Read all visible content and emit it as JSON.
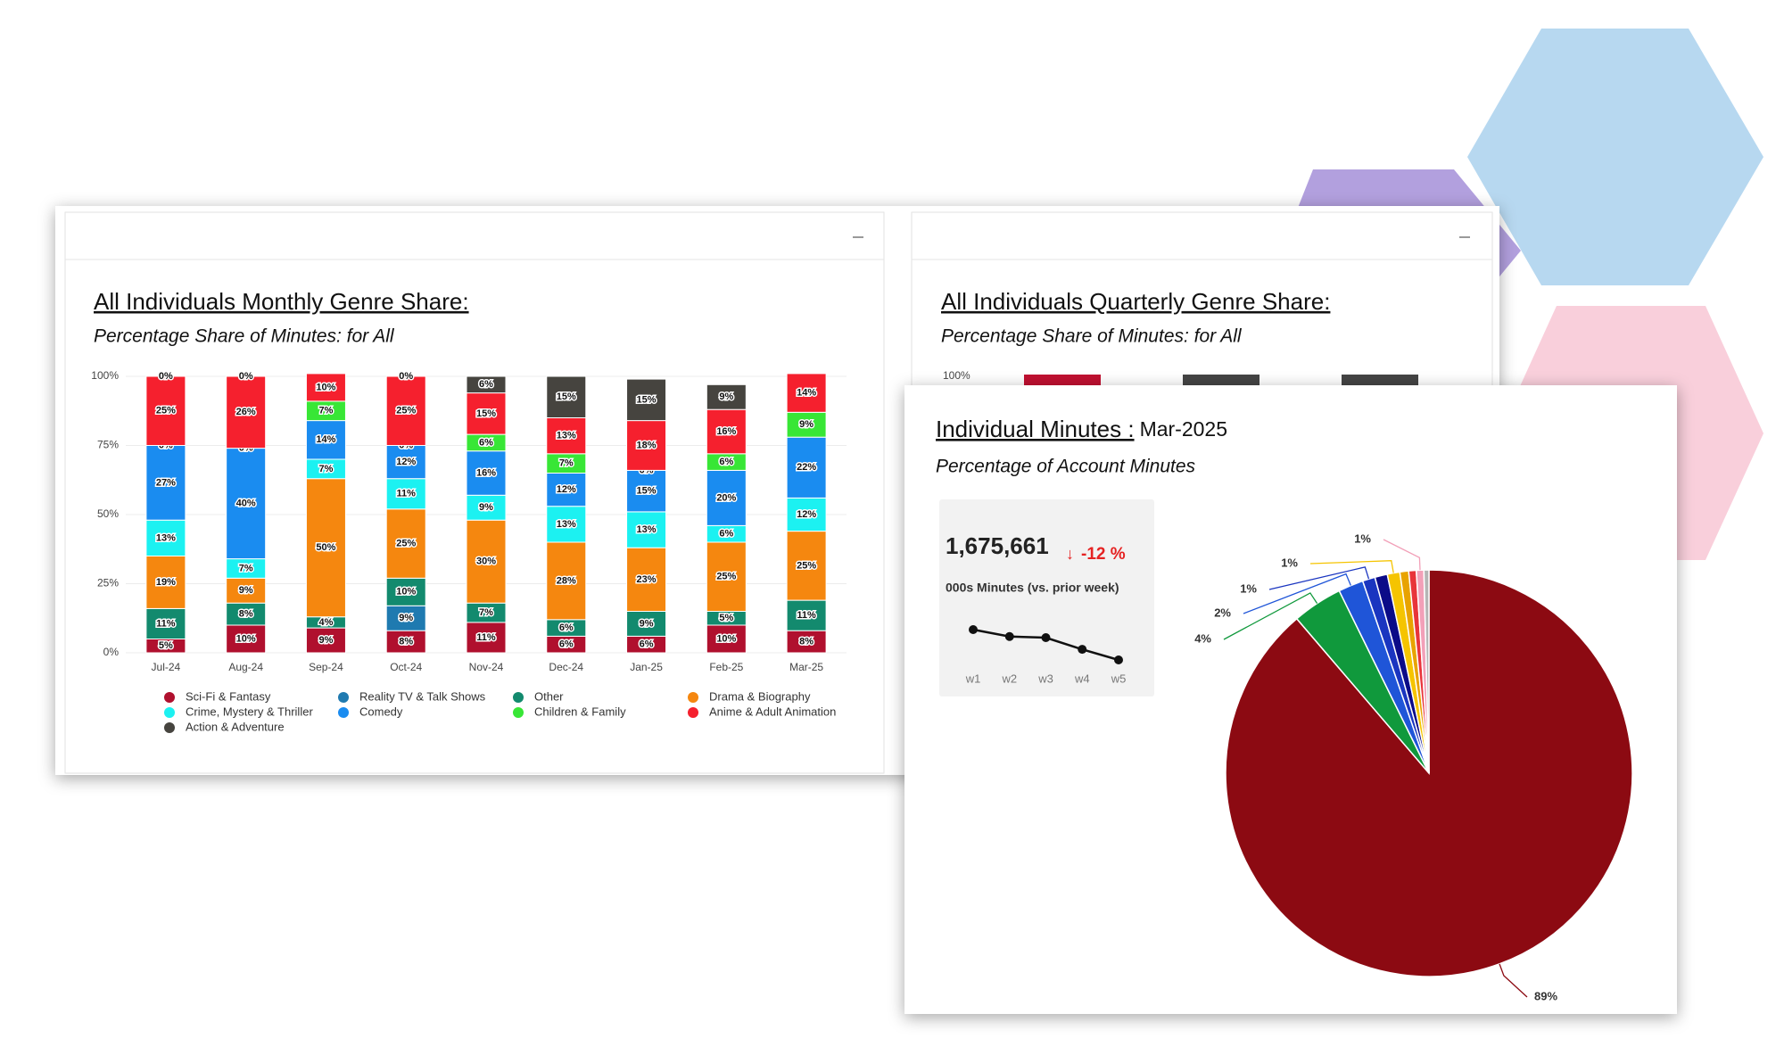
{
  "chart_data": [
    {
      "type": "bar",
      "stacked": true,
      "title": "All Individuals Monthly Genre Share:",
      "subtitle": "Percentage Share of Minutes: for All",
      "categories": [
        "Jul-24",
        "Aug-24",
        "Sep-24",
        "Oct-24",
        "Nov-24",
        "Dec-24",
        "Jan-25",
        "Feb-25",
        "Mar-25"
      ],
      "series": [
        {
          "name": "Sci-Fi & Fantasy",
          "color": "#b0102e",
          "values": [
            5,
            10,
            9,
            8,
            11,
            6,
            6,
            10,
            8
          ],
          "value_labels": [
            "5%",
            "10%",
            "9%",
            "8%",
            "11%",
            "6%",
            "6%",
            "10%",
            "8%"
          ]
        },
        {
          "name": "Reality TV & Talk Shows",
          "color": "#1f7ab0",
          "values": [
            null,
            null,
            null,
            9,
            null,
            null,
            null,
            null,
            null
          ],
          "value_labels": [
            null,
            null,
            null,
            "9%",
            null,
            null,
            null,
            null,
            null
          ]
        },
        {
          "name": "Other",
          "color": "#138a6e",
          "values": [
            11,
            8,
            4,
            10,
            7,
            6,
            9,
            5,
            11
          ],
          "value_labels": [
            "11%",
            "8%",
            "4%",
            "10%",
            "7%",
            "6%",
            "9%",
            "5%",
            "11%"
          ]
        },
        {
          "name": "Drama & Biography",
          "color": "#f5870f",
          "values": [
            19,
            9,
            50,
            25,
            30,
            28,
            23,
            25,
            25
          ],
          "value_labels": [
            "19%",
            "9%",
            "50%",
            "25%",
            "30%",
            "28%",
            "23%",
            "25%",
            "25%"
          ]
        },
        {
          "name": "Crime, Mystery & Thriller",
          "color": "#1cf1f1",
          "values": [
            13,
            7,
            7,
            11,
            9,
            13,
            13,
            6,
            12
          ],
          "value_labels": [
            "13%",
            "7%",
            "7%",
            "11%",
            "9%",
            "13%",
            "13%",
            "6%",
            "12%"
          ]
        },
        {
          "name": "Comedy",
          "color": "#1a8cf0",
          "values": [
            27,
            40,
            14,
            12,
            16,
            12,
            15,
            20,
            22
          ],
          "value_labels": [
            "27%",
            "40%",
            "14%",
            "12%",
            "16%",
            "12%",
            "15%",
            "20%",
            "22%"
          ]
        },
        {
          "name": "Children & Family",
          "color": "#38e636",
          "values": [
            0,
            0,
            7,
            0,
            6,
            7,
            0,
            6,
            9
          ],
          "value_labels": [
            "0%",
            "0%",
            "7%",
            "0%",
            "6%",
            "7%",
            "0%",
            "6%",
            "9%"
          ]
        },
        {
          "name": "Anime & Adult Animation",
          "color": "#f5202e",
          "values": [
            25,
            26,
            10,
            25,
            15,
            13,
            18,
            16,
            14
          ],
          "value_labels": [
            "25%",
            "26%",
            "10%",
            "25%",
            "15%",
            "13%",
            "18%",
            "16%",
            "14%"
          ]
        },
        {
          "name": "Action & Adventure",
          "color": "#46443f",
          "values": [
            0,
            0,
            null,
            0,
            6,
            15,
            15,
            9,
            null
          ],
          "value_labels": [
            "0%",
            "0%",
            null,
            "0%",
            "6%",
            "15%",
            "15%",
            "9%",
            null
          ]
        }
      ],
      "ylim": [
        0,
        100
      ],
      "yticks": [
        {
          "value": 0,
          "label": "0%"
        },
        {
          "value": 25,
          "label": "25%"
        },
        {
          "value": 50,
          "label": "50%"
        },
        {
          "value": 75,
          "label": "75%"
        },
        {
          "value": 100,
          "label": "100%"
        }
      ],
      "grid": true,
      "legend": "bottom"
    },
    {
      "type": "pie",
      "title": "Individual Minutes :",
      "period": "Mar-2025",
      "subtitle": "Percentage of Account Minutes",
      "values": [
        89,
        4,
        2,
        1,
        1,
        1,
        0.7,
        0.6,
        0.6,
        0.4
      ],
      "value_labels": [
        "89%",
        "4%",
        "2%",
        "1%",
        null,
        "1%",
        null,
        null,
        "1%",
        null
      ],
      "colors": [
        "#8c0a12",
        "#10993c",
        "#1f55d8",
        "#1a35c0",
        "#0b0b88",
        "#f5c400",
        "#e8a300",
        "#e8343a",
        "#f2a0b8",
        "#b5b5b5"
      ]
    }
  ],
  "quarterly_panel": {
    "title": "All Individuals Quarterly Genre Share:",
    "subtitle": "Percentage Share of Minutes: for All",
    "ytick": "100%"
  },
  "kpi": {
    "value": "1,675,661",
    "change": "-12 %",
    "caption": "000s Minutes (vs. prior week)",
    "trend": {
      "type": "line",
      "categories": [
        "w1",
        "w2",
        "w3",
        "w4",
        "w5"
      ],
      "values": [
        2340,
        2190,
        2165,
        1910,
        1680
      ],
      "color": "#111111"
    }
  }
}
